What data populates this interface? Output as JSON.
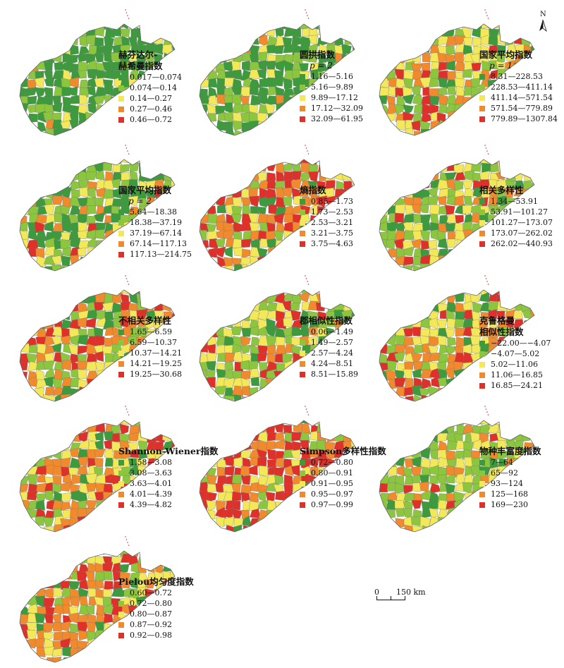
{
  "north_arrow": {
    "label": "N"
  },
  "scale_bar": {
    "zero_label": "0",
    "distance_label": "150 km"
  },
  "legend_colors": [
    "#3d9a3d",
    "#8cc63f",
    "#f2e85a",
    "#f18a2c",
    "#e0302a"
  ],
  "panels": [
    {
      "title": "赫芬达尔-\n赫希曼指数",
      "subtitle": "",
      "classes": [
        "0.017—0.074",
        "0.074—0.14",
        "0.14—0.27",
        "0.27—0.46",
        "0.46—0.72"
      ]
    },
    {
      "title": "圆拱指数",
      "subtitle": "p = 2",
      "classes": [
        "1.16—5.16",
        "5.16—9.89",
        "9.89—17.12",
        "17.12—32.09",
        "32.09—61.95"
      ]
    },
    {
      "title": "国家平均指数",
      "subtitle": "p = 1",
      "classes": [
        "8.31—228.53",
        "228.53—411.14",
        "411.14—571.54",
        "571.54—779.89",
        "779.89—1307.84"
      ]
    },
    {
      "title": "国家平均指数",
      "subtitle": "p = 2",
      "classes": [
        "5.64—18.38",
        "18.38—37.19",
        "37.19—67.14",
        "67.14—117.13",
        "117.13—214.75"
      ]
    },
    {
      "title": "熵指数",
      "subtitle": "",
      "classes": [
        "0.85—1.73",
        "1.73—2.53",
        "2.53—3.21",
        "3.21—3.75",
        "3.75—4.63"
      ]
    },
    {
      "title": "相关多样性",
      "subtitle": "",
      "classes": [
        "1.34—53.91",
        "53.91—101.27",
        "101.27—173.07",
        "173.07—262.02",
        "262.02—440.93"
      ]
    },
    {
      "title": "不相关多样性",
      "subtitle": "",
      "classes": [
        "1.65—6.59",
        "6.59—10.37",
        "10.37—14.21",
        "14.21—19.25",
        "19.25—30.68"
      ]
    },
    {
      "title": "郡相似性指数",
      "subtitle": "",
      "classes": [
        "0.06—1.49",
        "1.49—2.57",
        "2.57—4.24",
        "4.24—8.51",
        "8.51—15.89"
      ]
    },
    {
      "title": "克鲁格曼\n相似性指数",
      "subtitle": "",
      "classes": [
        "−22.00—−4.07",
        "−4.07—5.02",
        "5.02—11.06",
        "11.06—16.85",
        "16.85—24.21"
      ]
    },
    {
      "title": "Shannon-Wiener指数",
      "subtitle": "",
      "classes": [
        "1.58—3.08",
        "3.08—3.63",
        "3.63—4.01",
        "4.01—4.39",
        "4.39—4.82"
      ]
    },
    {
      "title": "Simpson多样性指数",
      "subtitle": "",
      "classes": [
        "0.72—0.80",
        "0.80—0.91",
        "0.91—0.95",
        "0.95—0.97",
        "0.97—0.99"
      ]
    },
    {
      "title": "物种丰富度指数",
      "subtitle": "",
      "classes": [
        "7—64",
        "65—92",
        "93—124",
        "125—168",
        "169—230"
      ]
    },
    {
      "title": "Pielou均匀度指数",
      "subtitle": "",
      "classes": [
        "0.60—0.72",
        "0.72—0.80",
        "0.80—0.87",
        "0.87—0.92",
        "0.92—0.98"
      ]
    }
  ]
}
